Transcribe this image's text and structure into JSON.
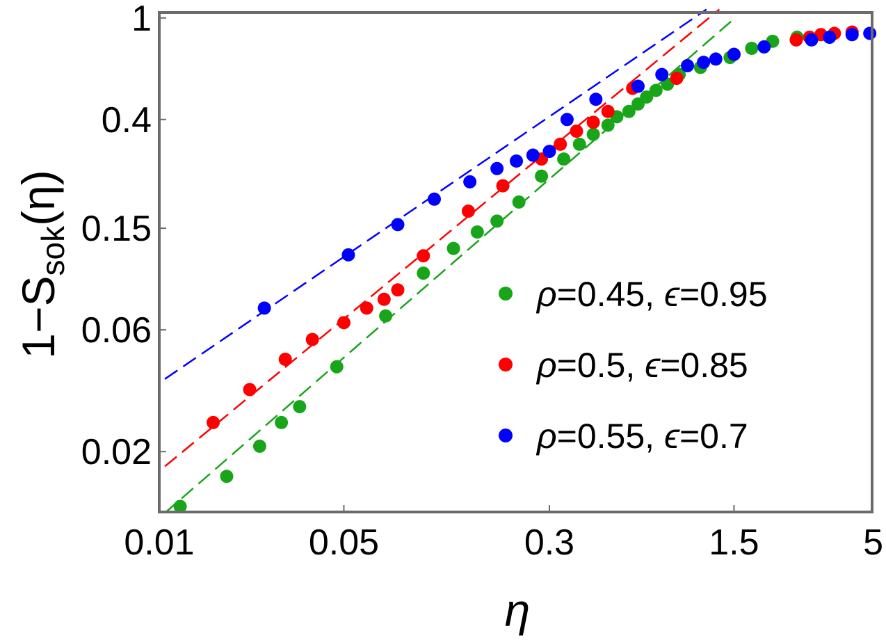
{
  "chart_data": {
    "type": "scatter",
    "scale": {
      "x": "log",
      "y": "log"
    },
    "xlim": [
      0.01,
      5
    ],
    "ylim": [
      0.0116,
      1.05
    ],
    "xticks": [
      {
        "value": 0.01,
        "label": "0.01"
      },
      {
        "value": 0.05,
        "label": "0.05"
      },
      {
        "value": 0.3,
        "label": "0.3"
      },
      {
        "value": 1.5,
        "label": "1.5"
      },
      {
        "value": 5,
        "label": "5"
      }
    ],
    "yticks": [
      {
        "value": 0.02,
        "label": "0.02"
      },
      {
        "value": 0.06,
        "label": "0.06"
      },
      {
        "value": 0.15,
        "label": "0.15"
      },
      {
        "value": 0.4,
        "label": "0.4"
      },
      {
        "value": 1,
        "label": "1"
      }
    ],
    "xlabel": "η",
    "ylabel": {
      "prefix": "1−S",
      "subscript": "sok",
      "suffix": "(η)"
    },
    "legend_position": "right-middle",
    "series": [
      {
        "name": "green",
        "legend": {
          "rho": "ρ",
          "rho_value": "=0.45, ",
          "eps": "ϵ",
          "eps_value": "=0.95"
        },
        "color": "#19a519",
        "fit_line": {
          "x": [
            0.0105,
            1.48
          ],
          "y": [
            0.0115,
            0.98
          ]
        },
        "x": [
          0.012,
          0.018,
          0.024,
          0.029,
          0.034,
          0.047,
          0.072,
          0.1,
          0.13,
          0.16,
          0.19,
          0.23,
          0.28,
          0.34,
          0.39,
          0.44,
          0.5,
          0.54,
          0.6,
          0.65,
          0.7,
          0.76,
          0.84,
          0.93,
          1.12,
          1.45,
          1.75,
          2.1,
          2.6
        ],
        "y": [
          0.0122,
          0.016,
          0.021,
          0.026,
          0.03,
          0.043,
          0.068,
          0.1,
          0.125,
          0.145,
          0.16,
          0.19,
          0.24,
          0.28,
          0.32,
          0.35,
          0.38,
          0.41,
          0.43,
          0.46,
          0.49,
          0.52,
          0.55,
          0.6,
          0.64,
          0.7,
          0.76,
          0.81,
          0.84
        ]
      },
      {
        "name": "red",
        "legend": {
          "rho": "ρ",
          "rho_value": "=0.5, ",
          "eps": "ϵ",
          "eps_value": "=0.85"
        },
        "color": "#ff0000",
        "fit_line": {
          "x": [
            0.0105,
            1.32
          ],
          "y": [
            0.0175,
            1.08
          ]
        },
        "x": [
          0.016,
          0.022,
          0.03,
          0.038,
          0.05,
          0.061,
          0.071,
          0.08,
          0.1,
          0.148,
          0.2,
          0.28,
          0.33,
          0.38,
          0.44,
          0.5,
          0.62,
          0.91,
          1.5,
          2.58,
          2.9,
          3.2,
          3.6,
          4.2
        ],
        "y": [
          0.026,
          0.035,
          0.046,
          0.055,
          0.064,
          0.073,
          0.079,
          0.086,
          0.117,
          0.175,
          0.22,
          0.28,
          0.32,
          0.36,
          0.39,
          0.43,
          0.53,
          0.58,
          0.72,
          0.82,
          0.84,
          0.86,
          0.87,
          0.88
        ]
      },
      {
        "name": "blue",
        "legend": {
          "rho": "ρ",
          "rho_value": "=0.55, ",
          "eps": "ϵ",
          "eps_value": "=0.7"
        },
        "color": "#0000ff",
        "fit_line": {
          "x": [
            0.0105,
            1.18
          ],
          "y": [
            0.0385,
            1.08
          ]
        },
        "x": [
          0.025,
          0.052,
          0.08,
          0.11,
          0.15,
          0.19,
          0.225,
          0.26,
          0.3,
          0.35,
          0.45,
          0.65,
          0.8,
          1.0,
          1.15,
          1.28,
          1.5,
          1.95,
          2.95,
          3.45,
          4.2,
          4.9
        ],
        "y": [
          0.073,
          0.118,
          0.155,
          0.195,
          0.228,
          0.257,
          0.275,
          0.29,
          0.3,
          0.4,
          0.48,
          0.54,
          0.6,
          0.65,
          0.67,
          0.69,
          0.72,
          0.77,
          0.82,
          0.84,
          0.86,
          0.87
        ]
      }
    ]
  }
}
